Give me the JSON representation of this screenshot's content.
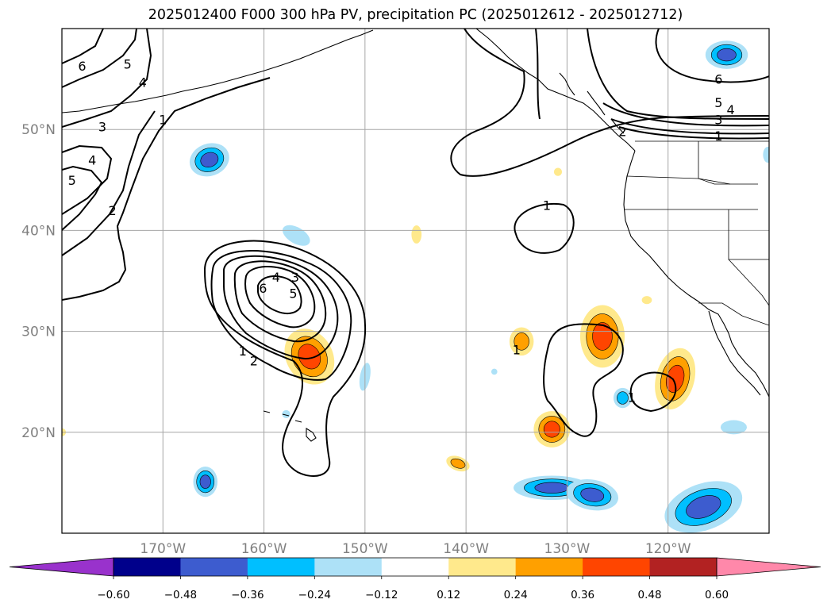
{
  "title": "2025012400 F000 300 hPa PV, precipitation PC (2025012612 - 2025012712)",
  "map": {
    "lon_range": [
      -180,
      -110
    ],
    "lat_range": [
      10,
      60
    ],
    "lon_ticks": [
      {
        "lon": -170,
        "label": "170°W"
      },
      {
        "lon": -160,
        "label": "160°W"
      },
      {
        "lon": -150,
        "label": "150°W"
      },
      {
        "lon": -140,
        "label": "140°W"
      },
      {
        "lon": -130,
        "label": "130°W"
      },
      {
        "lon": -120,
        "label": "120°W"
      }
    ],
    "lat_ticks": [
      {
        "lat": 20,
        "label": "20°N"
      },
      {
        "lat": 30,
        "label": "30°N"
      },
      {
        "lat": 40,
        "label": "40°N"
      },
      {
        "lat": 50,
        "label": "50°N"
      }
    ],
    "grid": true,
    "tick_label_color": "#808080",
    "pv_contour_labels": [
      {
        "text": "6",
        "lon": -178,
        "lat": 56.3
      },
      {
        "text": "5",
        "lon": -173.5,
        "lat": 56.5
      },
      {
        "text": "4",
        "lon": -172,
        "lat": 54.7
      },
      {
        "text": "3",
        "lon": -176,
        "lat": 50.3
      },
      {
        "text": "1",
        "lon": -170,
        "lat": 51
      },
      {
        "text": "4",
        "lon": -177,
        "lat": 47
      },
      {
        "text": "5",
        "lon": -179,
        "lat": 45
      },
      {
        "text": "2",
        "lon": -175,
        "lat": 42
      },
      {
        "text": "4",
        "lon": -158.8,
        "lat": 35.4
      },
      {
        "text": "3",
        "lon": -156.9,
        "lat": 35.4
      },
      {
        "text": "6",
        "lon": -160.1,
        "lat": 34.3
      },
      {
        "text": "5",
        "lon": -157.1,
        "lat": 33.8
      },
      {
        "text": "1",
        "lon": -162.1,
        "lat": 28.1
      },
      {
        "text": "2",
        "lon": -161,
        "lat": 27.1
      },
      {
        "text": "1",
        "lon": -132,
        "lat": 42.5
      },
      {
        "text": "1",
        "lon": -135,
        "lat": 28.2
      },
      {
        "text": "1",
        "lon": -123.6,
        "lat": 23.5
      },
      {
        "text": "6",
        "lon": -115,
        "lat": 55
      },
      {
        "text": "5",
        "lon": -115,
        "lat": 52.7
      },
      {
        "text": "4",
        "lon": -113.8,
        "lat": 52
      },
      {
        "text": "3",
        "lon": -115,
        "lat": 51
      },
      {
        "text": "1",
        "lon": -115,
        "lat": 49.4
      },
      {
        "text": "2",
        "lon": -124.5,
        "lat": 49.8
      }
    ],
    "precip_blobs": [
      {
        "lon": -155.5,
        "lat": 27.5,
        "rx": 2.3,
        "ry": 2.9,
        "rot": -30,
        "value": 0.42
      },
      {
        "lon": -126.5,
        "lat": 29.5,
        "rx": 2.2,
        "ry": 3.1,
        "rot": 0,
        "value": 0.4
      },
      {
        "lon": -119.3,
        "lat": 25.3,
        "rx": 1.9,
        "ry": 3.1,
        "rot": 15,
        "value": 0.42
      },
      {
        "lon": -131.5,
        "lat": 20.3,
        "rx": 1.8,
        "ry": 1.8,
        "rot": 0,
        "value": 0.38
      },
      {
        "lon": -134.5,
        "lat": 29,
        "rx": 1.2,
        "ry": 1.4,
        "rot": 0,
        "value": 0.3
      },
      {
        "lon": -140.8,
        "lat": 16.9,
        "rx": 1.2,
        "ry": 0.7,
        "rot": 20,
        "value": 0.28
      },
      {
        "lon": -144.9,
        "lat": 39.6,
        "rx": 0.5,
        "ry": 0.9,
        "rot": 0,
        "value": 0.18
      },
      {
        "lon": -130.9,
        "lat": 45.8,
        "rx": 0.4,
        "ry": 0.4,
        "rot": 0,
        "value": 0.15
      },
      {
        "lon": -122.1,
        "lat": 33.1,
        "rx": 0.5,
        "ry": 0.4,
        "rot": 0,
        "value": 0.15
      },
      {
        "lon": -180,
        "lat": 20,
        "rx": 0.4,
        "ry": 0.4,
        "rot": 0,
        "value": 0.15
      },
      {
        "lon": -165.4,
        "lat": 47,
        "rx": 2.0,
        "ry": 1.6,
        "rot": -20,
        "value": -0.45
      },
      {
        "lon": -114.2,
        "lat": 57.4,
        "rx": 2.1,
        "ry": 1.4,
        "rot": 0,
        "value": -0.42
      },
      {
        "lon": -165.8,
        "lat": 15.1,
        "rx": 1.2,
        "ry": 1.5,
        "rot": 0,
        "value": -0.4
      },
      {
        "lon": -116.5,
        "lat": 12.6,
        "rx": 4.0,
        "ry": 2.3,
        "rot": -20,
        "value": -0.46
      },
      {
        "lon": -131.5,
        "lat": 14.5,
        "rx": 3.8,
        "ry": 1.2,
        "rot": 0,
        "value": -0.4
      },
      {
        "lon": -127.5,
        "lat": 13.8,
        "rx": 2.6,
        "ry": 1.5,
        "rot": 10,
        "value": -0.36
      },
      {
        "lon": -124.5,
        "lat": 23.4,
        "rx": 0.9,
        "ry": 1.0,
        "rot": 0,
        "value": -0.3
      },
      {
        "lon": -150,
        "lat": 25.5,
        "rx": 0.5,
        "ry": 1.4,
        "rot": 10,
        "value": -0.22
      },
      {
        "lon": -156.8,
        "lat": 39.5,
        "rx": 1.5,
        "ry": 0.8,
        "rot": 30,
        "value": -0.18
      },
      {
        "lon": -113.5,
        "lat": 20.5,
        "rx": 1.3,
        "ry": 0.7,
        "rot": 0,
        "value": -0.22
      },
      {
        "lon": -110.1,
        "lat": 47.5,
        "rx": 0.5,
        "ry": 0.8,
        "rot": 0,
        "value": -0.2
      },
      {
        "lon": -157.8,
        "lat": 21.8,
        "rx": 0.4,
        "ry": 0.4,
        "rot": 0,
        "value": -0.18
      },
      {
        "lon": -137.2,
        "lat": 26,
        "rx": 0.3,
        "ry": 0.3,
        "rot": 0,
        "value": -0.18
      }
    ]
  },
  "colorbar": {
    "levels": [
      -0.6,
      -0.48,
      -0.36,
      -0.24,
      -0.12,
      0.12,
      0.24,
      0.36,
      0.48,
      0.6
    ],
    "colors": [
      "#9932cc",
      "#00008b",
      "#3d5ccf",
      "#00bfff",
      "#ade1f7",
      "#ffffff",
      "#ffe98c",
      "#ffa000",
      "#ff4500",
      "#b22222",
      "#ff88aa"
    ],
    "labels": [
      "−0.60",
      "−0.48",
      "−0.36",
      "−0.24",
      "−0.12",
      "0.12",
      "0.24",
      "0.36",
      "0.48",
      "0.60"
    ],
    "extend": "both"
  }
}
